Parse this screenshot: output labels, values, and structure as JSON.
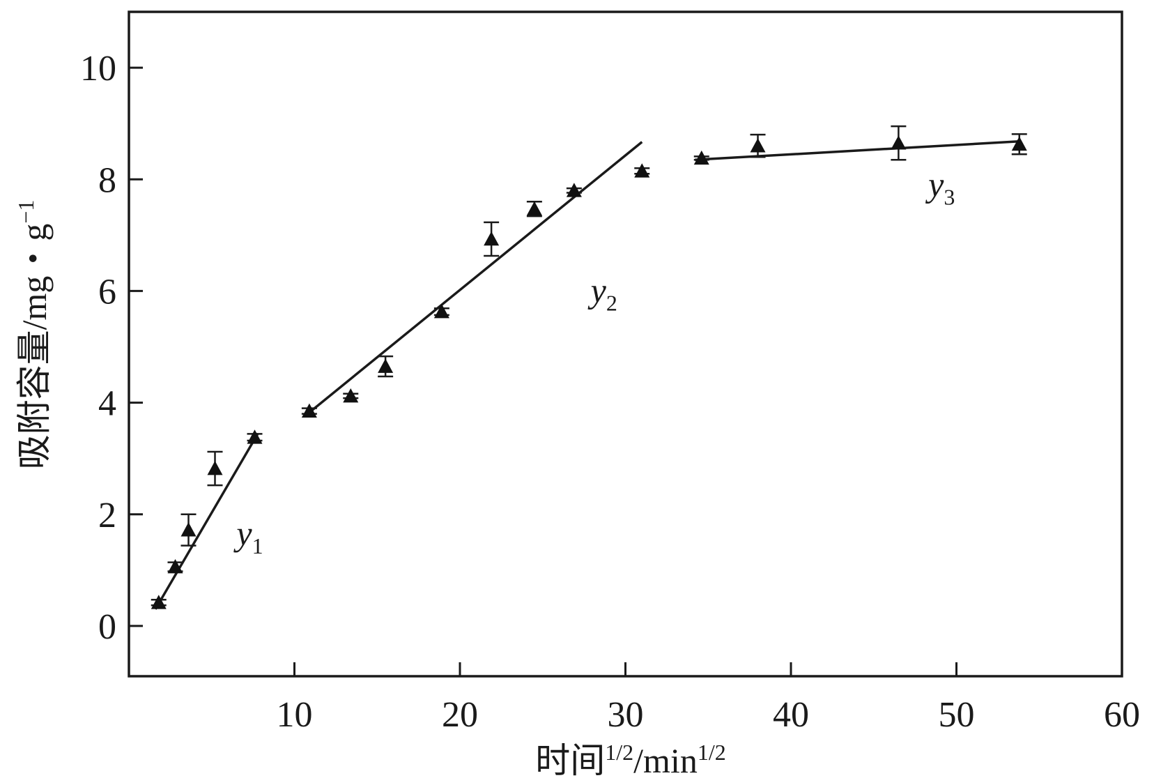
{
  "chart_data": {
    "type": "scatter",
    "xlabel": "时间",
    "xlabel_sup1": "1/2",
    "xlabel_mid": "/min",
    "xlabel_sup2": "1/2",
    "ylabel": "吸附容量/mg・g",
    "ylabel_sup": "−1",
    "xlim": [
      0,
      60
    ],
    "ylim": [
      -0.9,
      11
    ],
    "xticks": [
      10,
      20,
      30,
      40,
      50,
      60
    ],
    "yticks": [
      0,
      2,
      4,
      6,
      8,
      10
    ],
    "grid": false,
    "marker": "triangle",
    "points": [
      {
        "x": 1.8,
        "y": 0.42,
        "err": 0.05
      },
      {
        "x": 2.8,
        "y": 1.06,
        "err": 0.08
      },
      {
        "x": 3.6,
        "y": 1.72,
        "err": 0.28
      },
      {
        "x": 5.2,
        "y": 2.82,
        "err": 0.3
      },
      {
        "x": 7.6,
        "y": 3.38,
        "err": 0.06
      },
      {
        "x": 10.9,
        "y": 3.85,
        "err": 0.05
      },
      {
        "x": 13.4,
        "y": 4.12,
        "err": 0.04
      },
      {
        "x": 15.5,
        "y": 4.65,
        "err": 0.18
      },
      {
        "x": 18.9,
        "y": 5.63,
        "err": 0.06
      },
      {
        "x": 21.9,
        "y": 6.93,
        "err": 0.3
      },
      {
        "x": 24.5,
        "y": 7.47,
        "err": 0.13
      },
      {
        "x": 26.9,
        "y": 7.8,
        "err": 0.04
      },
      {
        "x": 31.0,
        "y": 8.15,
        "err": 0.05
      },
      {
        "x": 34.6,
        "y": 8.38,
        "err": 0.03
      },
      {
        "x": 38.0,
        "y": 8.6,
        "err": 0.2
      },
      {
        "x": 46.5,
        "y": 8.65,
        "err": 0.3
      },
      {
        "x": 53.8,
        "y": 8.63,
        "err": 0.18
      }
    ],
    "fit_lines": [
      {
        "name": "y",
        "sub": "1",
        "x": [
          1.6,
          7.8
        ],
        "y": [
          0.3,
          3.45
        ],
        "label_at": [
          6.5,
          1.45
        ]
      },
      {
        "name": "y",
        "sub": "2",
        "x": [
          10.8,
          31.0
        ],
        "y": [
          3.8,
          8.67
        ],
        "label_at": [
          27.9,
          5.8
        ]
      },
      {
        "name": "y",
        "sub": "3",
        "x": [
          34.2,
          53.8
        ],
        "y": [
          8.35,
          8.68
        ],
        "label_at": [
          48.3,
          7.7
        ]
      }
    ]
  }
}
